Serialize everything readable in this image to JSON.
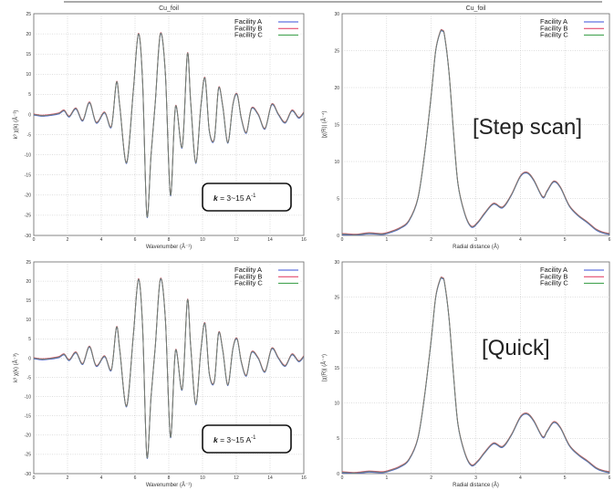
{
  "colors": {
    "facility_a": "#3a4fd8",
    "facility_b": "#e0325a",
    "facility_c": "#2f9a3e",
    "overlap": "#7a7a7a"
  },
  "chart_data": [
    {
      "id": "chi_step",
      "type": "line",
      "title": "Cu_foil",
      "xlabel": "Wavenumber  (Å⁻¹)",
      "ylabel": "k³ χ(k)  (Å⁻³)",
      "xlim": [
        0,
        16
      ],
      "ylim": [
        -30,
        25
      ],
      "xticks": [
        "0",
        "2",
        "4",
        "6",
        "8",
        "10",
        "12",
        "14",
        "16"
      ],
      "yticks": [
        "-30",
        "-25",
        "-20",
        "-15",
        "-10",
        "-5",
        "0",
        "5",
        "10",
        "15",
        "20",
        "25"
      ],
      "grid": true,
      "legend_position": "top-right",
      "series": [
        {
          "name": "Facility A"
        },
        {
          "name": "Facility B"
        },
        {
          "name": "Facility C"
        }
      ],
      "curve": {
        "x": [
          0,
          0.5,
          1,
          1.5,
          1.8,
          2.1,
          2.5,
          2.9,
          3.3,
          3.7,
          4.2,
          4.6,
          4.9,
          5.1,
          5.5,
          5.9,
          6.2,
          6.45,
          6.7,
          6.95,
          7.2,
          7.5,
          7.8,
          8.1,
          8.4,
          8.8,
          9.1,
          9.3,
          9.6,
          9.9,
          10.15,
          10.4,
          10.7,
          10.95,
          11.2,
          11.5,
          11.8,
          12.05,
          12.3,
          12.6,
          12.9,
          13.3,
          13.7,
          14.1,
          14.5,
          14.9,
          15.3,
          15.7,
          16
        ],
        "y": [
          0,
          -0.3,
          -0.1,
          0.3,
          1.0,
          -0.5,
          1.5,
          -1.5,
          3.0,
          -2.0,
          0.5,
          -3.0,
          8.0,
          2.0,
          -12.0,
          6.0,
          20.0,
          8.0,
          -25.0,
          -10.0,
          3.0,
          20.0,
          10.0,
          -20.0,
          2.0,
          -8.0,
          15.0,
          3.0,
          -12.0,
          2.0,
          9.0,
          -4.0,
          -6.0,
          6.5,
          2.0,
          -7.0,
          2.5,
          5.0,
          -1.0,
          -4.5,
          1.5,
          0.0,
          -3.5,
          2.5,
          0.0,
          -2.0,
          1.0,
          -0.8,
          0.5
        ]
      }
    },
    {
      "id": "ft_step",
      "type": "line",
      "title": "Cu_foil",
      "xlabel": "Radial distance  (Å)",
      "ylabel": "|χ(R)|  (Å⁻⁴)",
      "xlim": [
        0,
        6
      ],
      "ylim": [
        0,
        30
      ],
      "xticks": [
        "0",
        "1",
        "2",
        "3",
        "4",
        "5",
        "6"
      ],
      "yticks": [
        "0",
        "5",
        "10",
        "15",
        "20",
        "25",
        "30"
      ],
      "grid": true,
      "legend_position": "top-right",
      "series": [
        {
          "name": "Facility A"
        },
        {
          "name": "Facility B"
        },
        {
          "name": "Facility C"
        }
      ],
      "curve": {
        "x": [
          0,
          0.3,
          0.6,
          0.9,
          1.1,
          1.3,
          1.5,
          1.7,
          1.85,
          2.0,
          2.1,
          2.2,
          2.25,
          2.3,
          2.4,
          2.5,
          2.6,
          2.75,
          2.9,
          3.05,
          3.2,
          3.4,
          3.6,
          3.8,
          4.0,
          4.15,
          4.3,
          4.5,
          4.6,
          4.75,
          4.9,
          5.1,
          5.3,
          5.5,
          5.7,
          5.85,
          6.0
        ],
        "y": [
          0.2,
          0.1,
          0.3,
          0.2,
          0.5,
          1.0,
          2.0,
          5.0,
          11.0,
          19.0,
          25.0,
          27.5,
          27.7,
          27.0,
          22.0,
          14.0,
          7.0,
          3.0,
          1.2,
          1.8,
          3.0,
          4.3,
          3.8,
          5.5,
          8.0,
          8.5,
          7.5,
          5.2,
          6.0,
          7.3,
          6.5,
          4.0,
          2.7,
          1.8,
          0.8,
          0.4,
          0.2
        ]
      }
    },
    {
      "id": "chi_quick",
      "type": "line",
      "title": "",
      "xlabel": "Wavenumber  (Å⁻¹)",
      "ylabel": "k³ χ(k)  (Å⁻³)",
      "xlim": [
        0,
        16
      ],
      "ylim": [
        -30,
        25
      ],
      "xticks": [
        "0",
        "2",
        "4",
        "6",
        "8",
        "10",
        "12",
        "14",
        "16"
      ],
      "yticks": [
        "-30",
        "-25",
        "-20",
        "-15",
        "-10",
        "-5",
        "0",
        "5",
        "10",
        "15",
        "20",
        "25"
      ],
      "grid": true,
      "legend_position": "top-right",
      "series": [
        {
          "name": "Facility A"
        },
        {
          "name": "Facility B"
        },
        {
          "name": "Facility C"
        }
      ],
      "curve": {
        "x": [
          0,
          0.5,
          1,
          1.5,
          1.8,
          2.1,
          2.5,
          2.9,
          3.3,
          3.7,
          4.2,
          4.6,
          4.9,
          5.1,
          5.5,
          5.9,
          6.2,
          6.45,
          6.7,
          6.95,
          7.2,
          7.5,
          7.8,
          8.1,
          8.4,
          8.8,
          9.1,
          9.3,
          9.6,
          9.9,
          10.15,
          10.4,
          10.7,
          10.95,
          11.2,
          11.5,
          11.8,
          12.05,
          12.3,
          12.6,
          12.9,
          13.3,
          13.7,
          14.1,
          14.5,
          14.9,
          15.3,
          15.7,
          16
        ],
        "y": [
          0,
          -0.3,
          -0.1,
          0.3,
          1.0,
          -0.5,
          1.5,
          -1.5,
          3.0,
          -2.0,
          0.5,
          -3.0,
          8.0,
          2.0,
          -12.5,
          6.0,
          20.5,
          8.0,
          -25.5,
          -10.0,
          3.0,
          20.5,
          10.0,
          -20.5,
          2.0,
          -8.0,
          15.0,
          3.0,
          -12.0,
          2.0,
          9.0,
          -4.0,
          -6.0,
          6.5,
          2.0,
          -7.0,
          2.5,
          5.0,
          -1.0,
          -4.5,
          1.5,
          0.0,
          -3.5,
          2.5,
          0.0,
          -2.0,
          1.0,
          -0.8,
          0.5
        ]
      }
    },
    {
      "id": "ft_quick",
      "type": "line",
      "title": "",
      "xlabel": "Radial distance  (Å)",
      "ylabel": "|χ(R)|  (Å⁻⁴)",
      "xlim": [
        0,
        6
      ],
      "ylim": [
        0,
        30
      ],
      "xticks": [
        "0",
        "1",
        "2",
        "3",
        "4",
        "5",
        "6"
      ],
      "yticks": [
        "0",
        "5",
        "10",
        "15",
        "20",
        "25",
        "30"
      ],
      "grid": true,
      "legend_position": "top-right",
      "series": [
        {
          "name": "Facility A"
        },
        {
          "name": "Facility B"
        },
        {
          "name": "Facility C"
        }
      ],
      "curve": {
        "x": [
          0,
          0.3,
          0.6,
          0.9,
          1.1,
          1.3,
          1.5,
          1.7,
          1.85,
          2.0,
          2.1,
          2.2,
          2.25,
          2.3,
          2.4,
          2.5,
          2.6,
          2.75,
          2.9,
          3.05,
          3.2,
          3.4,
          3.6,
          3.8,
          4.0,
          4.15,
          4.3,
          4.5,
          4.6,
          4.75,
          4.9,
          5.1,
          5.3,
          5.5,
          5.7,
          5.85,
          6.0
        ],
        "y": [
          0.2,
          0.1,
          0.3,
          0.2,
          0.5,
          1.0,
          2.0,
          5.0,
          11.0,
          19.0,
          25.0,
          27.5,
          27.7,
          27.0,
          22.0,
          14.0,
          7.0,
          3.0,
          1.2,
          1.8,
          3.0,
          4.3,
          3.8,
          5.5,
          8.0,
          8.5,
          7.5,
          5.2,
          6.0,
          7.3,
          6.5,
          4.0,
          2.7,
          1.8,
          0.8,
          0.4,
          0.2
        ]
      }
    }
  ],
  "annotations": {
    "step_scan": "[Step scan]",
    "quick": "[Quick]",
    "k_range": {
      "k": "k",
      "text": " = 3~15 A",
      "sup": "-1"
    }
  }
}
